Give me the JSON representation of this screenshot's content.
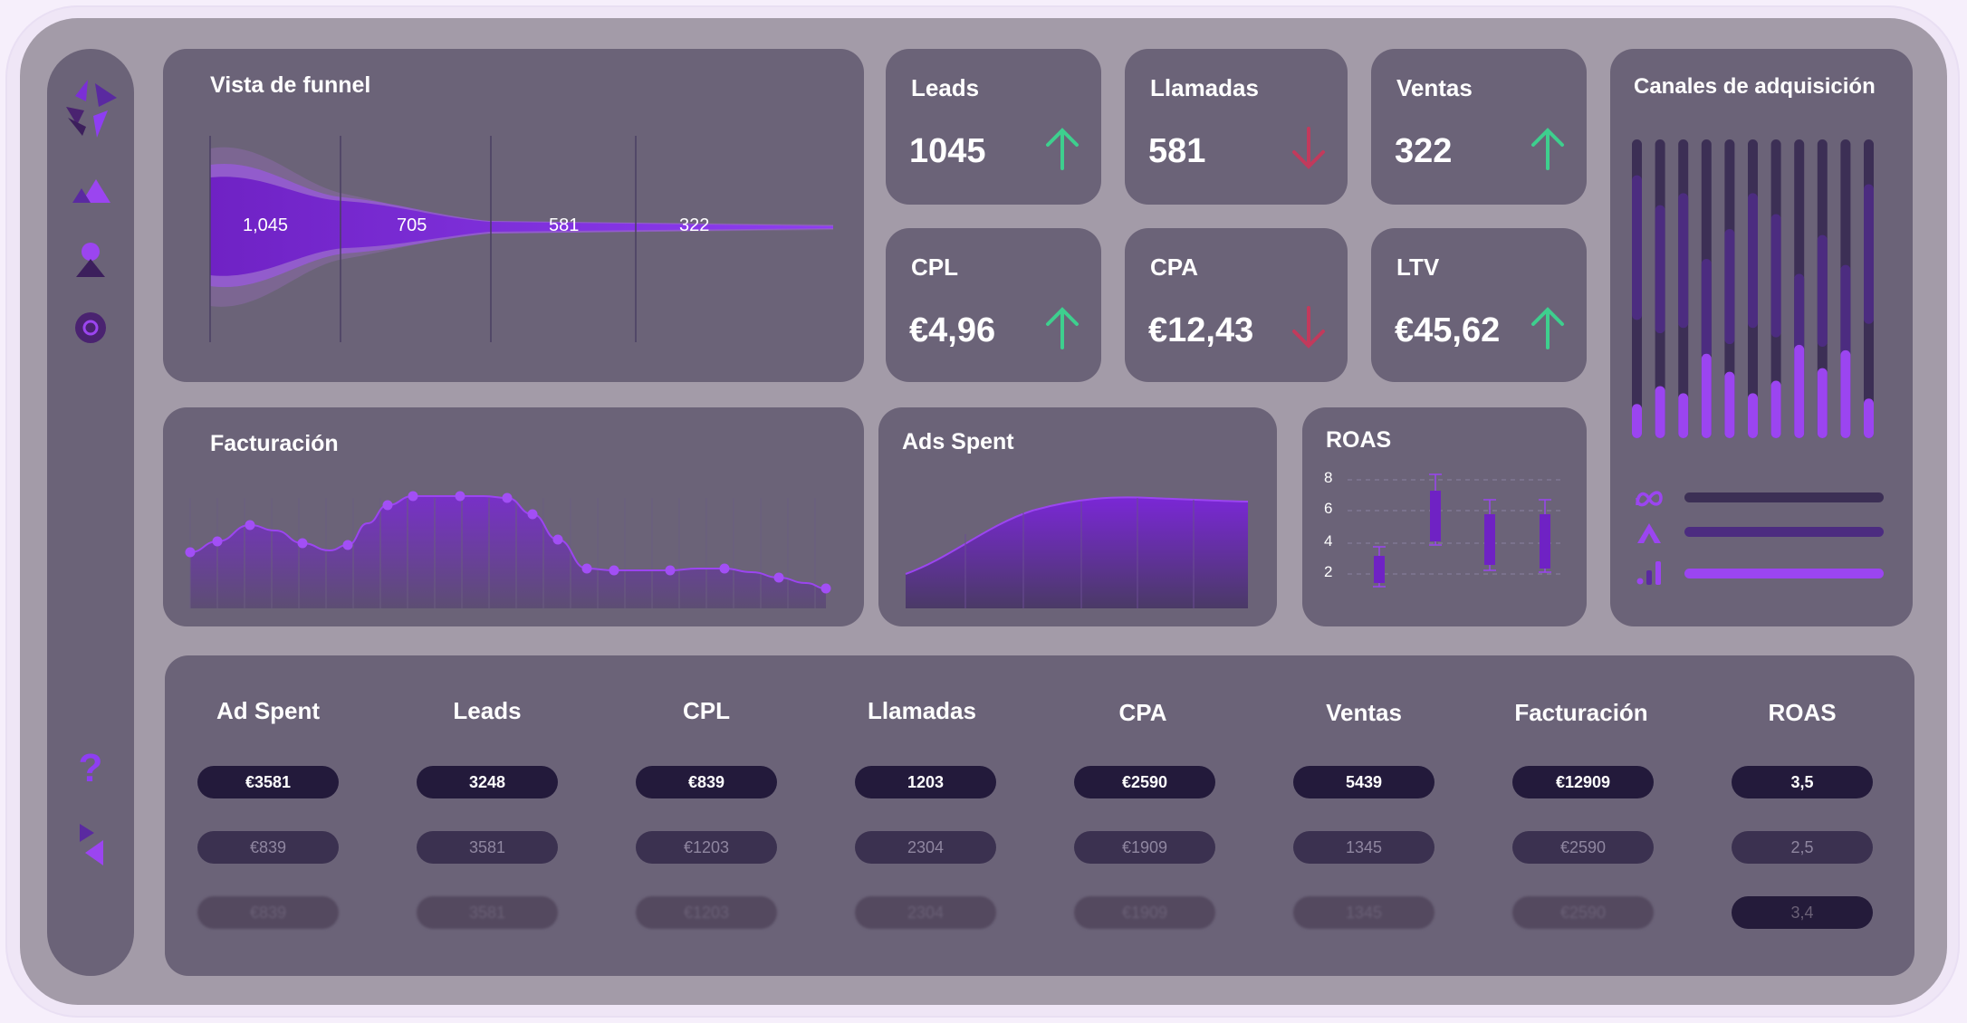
{
  "funnel": {
    "title": "Vista de funnel",
    "labels": [
      "1,045",
      "705",
      "581",
      "322"
    ]
  },
  "kpis": [
    {
      "id": "leads",
      "label": "Leads",
      "value": "1045",
      "trend": "up"
    },
    {
      "id": "llamadas",
      "label": "Llamadas",
      "value": "581",
      "trend": "down"
    },
    {
      "id": "ventas",
      "label": "Ventas",
      "value": "322",
      "trend": "up"
    },
    {
      "id": "cpl",
      "label": "CPL",
      "value": "€4,96",
      "trend": "up"
    },
    {
      "id": "cpa",
      "label": "CPA",
      "value": "€12,43",
      "trend": "down"
    },
    {
      "id": "ltv",
      "label": "LTV",
      "value": "€45,62",
      "trend": "up"
    }
  ],
  "colors": {
    "up": "#3ecf8e",
    "down": "#c23a5c",
    "accent": "#9b45f0",
    "card": "#6b6378",
    "pill": "#231a3b"
  },
  "facturacion": {
    "title": "Facturación"
  },
  "ads_spent": {
    "title": "Ads Spent"
  },
  "roas": {
    "title": "ROAS",
    "ticks": [
      "8",
      "6",
      "4",
      "2"
    ]
  },
  "canales": {
    "title": "Canales de adquisición",
    "icons": [
      "meta-icon",
      "ads-icon",
      "analytics-icon"
    ],
    "bar_levels": [
      0.88,
      0.78,
      0.82,
      0.6,
      0.7,
      0.82,
      0.75,
      0.55,
      0.68,
      0.58,
      0.85
    ]
  },
  "table": {
    "headers": [
      "Ad Spent",
      "Leads",
      "CPL",
      "Llamadas",
      "CPA",
      "Ventas",
      "Facturación",
      "ROAS"
    ],
    "rows": [
      [
        "€3581",
        "3248",
        "€839",
        "1203",
        "€2590",
        "5439",
        "€12909",
        "3,5"
      ],
      [
        "€839",
        "3581",
        "€1203",
        "2304",
        "€1909",
        "1345",
        "€2590",
        "2,5"
      ],
      [
        "€839",
        "3581",
        "€1203",
        "2304",
        "€1909",
        "1345",
        "€2590",
        "3,4"
      ]
    ]
  },
  "sidebar": {
    "items": [
      "logo-icon",
      "shapes-icon",
      "profile-icon",
      "circle-icon"
    ],
    "bottom": [
      "help-icon",
      "play-icon"
    ],
    "help_glyph": "?"
  }
}
